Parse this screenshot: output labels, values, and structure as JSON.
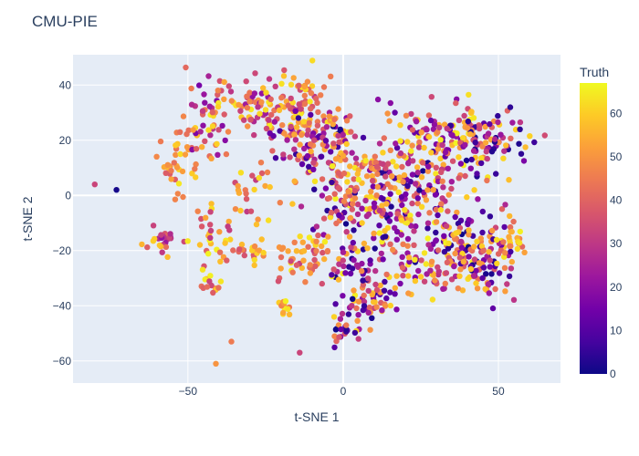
{
  "chart_data": {
    "type": "scatter",
    "title": "CMU-PIE",
    "xlabel": "t-SNE 1",
    "ylabel": "t-SNE 2",
    "xlim": [
      -87,
      70
    ],
    "ylim": [
      -68,
      51
    ],
    "xticks": [
      -50,
      0,
      50
    ],
    "yticks": [
      40,
      20,
      0,
      -20,
      -40,
      -60
    ],
    "xtick_labels": [
      "−50",
      "0",
      "50"
    ],
    "ytick_labels": [
      "40",
      "20",
      "0",
      "−20",
      "−40",
      "−60"
    ],
    "grid": true,
    "colorbar": {
      "title": "Truth",
      "range": [
        0,
        67
      ],
      "ticks": [
        0,
        10,
        20,
        30,
        40,
        50,
        60
      ],
      "tick_labels": [
        "0",
        "10",
        "20",
        "30",
        "40",
        "50",
        "60"
      ],
      "colorscale": [
        "#0d0887",
        "#46039f",
        "#7201a8",
        "#9c179e",
        "#bd3786",
        "#d8576b",
        "#ed7953",
        "#fb9f3a",
        "#fdca26",
        "#f0f921"
      ]
    },
    "background_color": "#e5ecf6",
    "clusters": [
      {
        "x": -57,
        "y": -15,
        "sx": 1.2,
        "sy": 1.2,
        "n": 14,
        "c": [
          20,
          45
        ]
      },
      {
        "x": -60,
        "y": -17,
        "sx": 3.0,
        "sy": 3.0,
        "n": 10,
        "c": [
          30,
          60
        ]
      },
      {
        "x": -53,
        "y": 13,
        "sx": 4.0,
        "sy": 6.0,
        "n": 40,
        "c": [
          35,
          65
        ]
      },
      {
        "x": -43,
        "y": 26,
        "sx": 5.0,
        "sy": 8.0,
        "n": 50,
        "c": [
          15,
          66
        ]
      },
      {
        "x": -28,
        "y": 33,
        "sx": 6.0,
        "sy": 5.0,
        "n": 60,
        "c": [
          20,
          66
        ]
      },
      {
        "x": -15,
        "y": 35,
        "sx": 5.0,
        "sy": 5.0,
        "n": 60,
        "c": [
          30,
          66
        ]
      },
      {
        "x": -18,
        "y": 22,
        "sx": 5.0,
        "sy": 5.0,
        "n": 40,
        "c": [
          5,
          66
        ]
      },
      {
        "x": -10,
        "y": 14,
        "sx": 6.0,
        "sy": 6.0,
        "n": 60,
        "c": [
          5,
          66
        ]
      },
      {
        "x": -3,
        "y": 24,
        "sx": 4.0,
        "sy": 4.0,
        "n": 40,
        "c": [
          0,
          66
        ]
      },
      {
        "x": -30,
        "y": 0,
        "sx": 6.0,
        "sy": 5.0,
        "n": 25,
        "c": [
          30,
          66
        ]
      },
      {
        "x": -43,
        "y": -13,
        "sx": 4.0,
        "sy": 6.0,
        "n": 30,
        "c": [
          30,
          66
        ]
      },
      {
        "x": -30,
        "y": -20,
        "sx": 8.0,
        "sy": 3.0,
        "n": 30,
        "c": [
          35,
          66
        ]
      },
      {
        "x": -44,
        "y": -33,
        "sx": 3.0,
        "sy": 2.0,
        "n": 14,
        "c": [
          30,
          66
        ]
      },
      {
        "x": -19,
        "y": -40,
        "sx": 1.5,
        "sy": 1.5,
        "n": 12,
        "c": [
          40,
          66
        ]
      },
      {
        "x": -15,
        "y": -27,
        "sx": 5.0,
        "sy": 4.0,
        "n": 20,
        "c": [
          30,
          66
        ]
      },
      {
        "x": -10,
        "y": -20,
        "sx": 4.0,
        "sy": 4.0,
        "n": 20,
        "c": [
          30,
          66
        ]
      },
      {
        "x": 0,
        "y": -5,
        "sx": 6.0,
        "sy": 8.0,
        "n": 70,
        "c": [
          0,
          66
        ]
      },
      {
        "x": 15,
        "y": -5,
        "sx": 7.0,
        "sy": 10.0,
        "n": 110,
        "c": [
          0,
          66
        ]
      },
      {
        "x": 8,
        "y": 10,
        "sx": 7.0,
        "sy": 5.0,
        "n": 60,
        "c": [
          30,
          66
        ]
      },
      {
        "x": 28,
        "y": 20,
        "sx": 8.0,
        "sy": 6.0,
        "n": 90,
        "c": [
          10,
          66
        ]
      },
      {
        "x": 45,
        "y": 20,
        "sx": 8.0,
        "sy": 6.0,
        "n": 110,
        "c": [
          0,
          66
        ]
      },
      {
        "x": 30,
        "y": 5,
        "sx": 8.0,
        "sy": 6.0,
        "n": 60,
        "c": [
          0,
          66
        ]
      },
      {
        "x": 33,
        "y": -15,
        "sx": 10.0,
        "sy": 6.0,
        "n": 90,
        "c": [
          0,
          66
        ]
      },
      {
        "x": 45,
        "y": -25,
        "sx": 6.0,
        "sy": 6.0,
        "n": 90,
        "c": [
          0,
          66
        ]
      },
      {
        "x": 30,
        "y": -28,
        "sx": 6.0,
        "sy": 4.0,
        "n": 50,
        "c": [
          15,
          66
        ]
      },
      {
        "x": 10,
        "y": -38,
        "sx": 6.0,
        "sy": 4.0,
        "n": 45,
        "c": [
          0,
          66
        ]
      },
      {
        "x": 2,
        "y": -47,
        "sx": 3.0,
        "sy": 4.0,
        "n": 30,
        "c": [
          0,
          66
        ]
      },
      {
        "x": 5,
        "y": -28,
        "sx": 5.0,
        "sy": 5.0,
        "n": 40,
        "c": [
          0,
          66
        ]
      },
      {
        "x": 55,
        "y": -15,
        "sx": 3.0,
        "sy": 3.0,
        "n": 20,
        "c": [
          40,
          66
        ]
      }
    ],
    "points": [
      {
        "x": -80,
        "y": 4,
        "c": 33
      },
      {
        "x": -73,
        "y": 2,
        "c": 1
      },
      {
        "x": -41,
        "y": -61,
        "c": 50
      },
      {
        "x": -36,
        "y": -53,
        "c": 45
      },
      {
        "x": -14,
        "y": -57,
        "c": 33
      }
    ]
  }
}
